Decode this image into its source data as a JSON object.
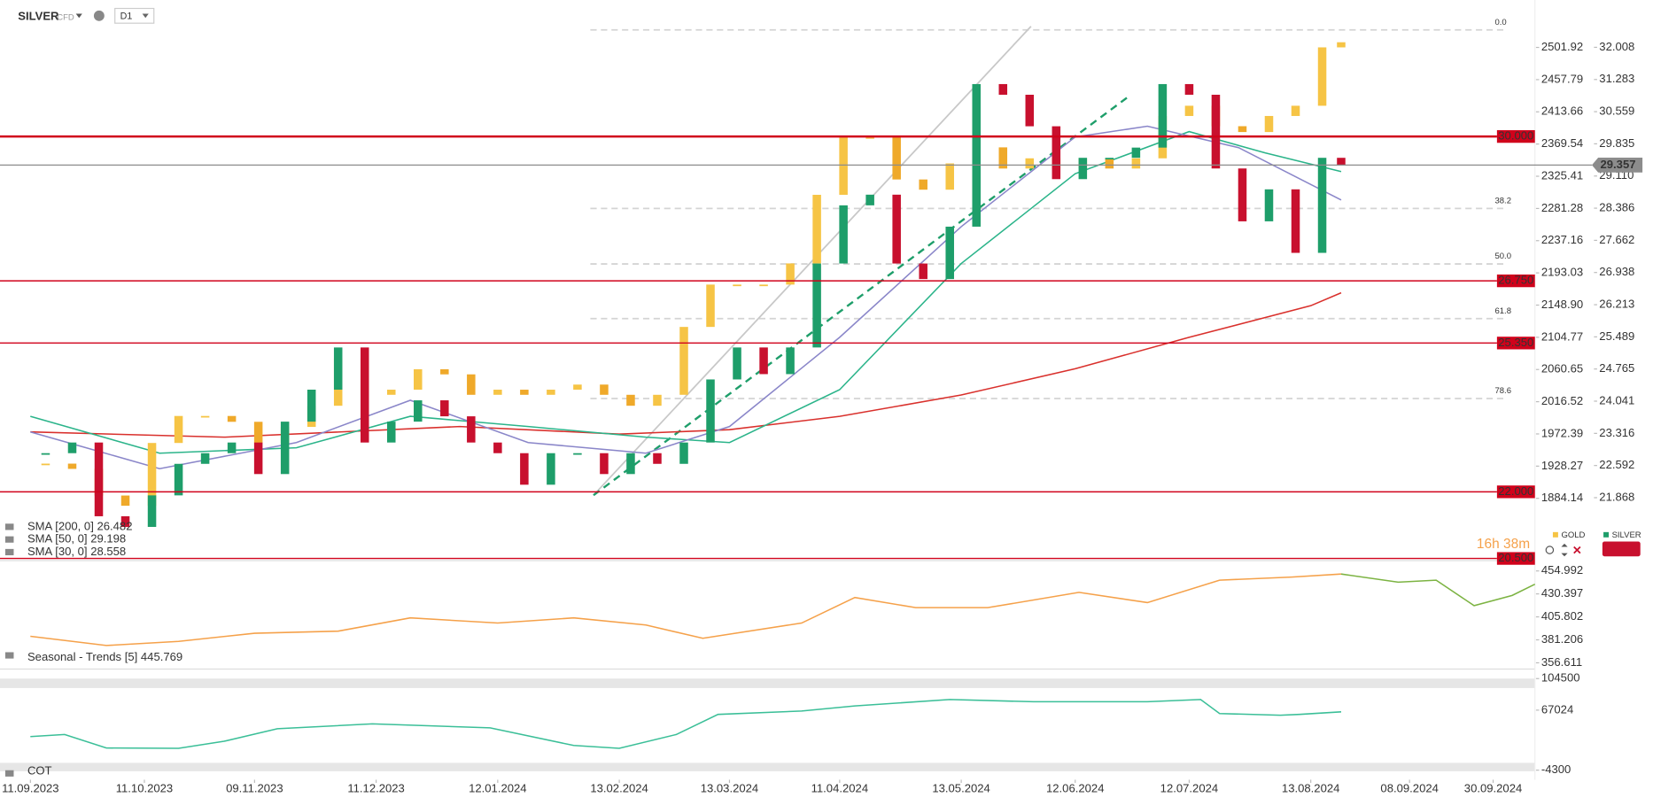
{
  "header": {
    "symbol": "SILVER",
    "instrument_type": "CFD",
    "timeframe": "D1",
    "countdown": "16h 38m"
  },
  "chart_data": [
    {
      "type": "candlestick",
      "xlim": [
        "03.09.2023",
        "11.10.2024"
      ],
      "xticks": [
        "11.09.2023",
        "11.10.2023",
        "09.11.2023",
        "11.12.2023",
        "12.01.2024",
        "13.02.2024",
        "13.03.2024",
        "11.04.2024",
        "13.05.2024",
        "12.06.2024",
        "12.07.2024",
        "13.08.2024",
        "08.09.2024",
        "30.09.2024"
      ],
      "x": [
        "15.09.2023",
        "22.09.2023",
        "29.09.2023",
        "06.10.2023",
        "13.10.2023",
        "20.10.2023",
        "27.10.2023",
        "03.11.2023",
        "10.11.2023",
        "17.11.2023",
        "24.11.2023",
        "01.12.2023",
        "08.12.2023",
        "15.12.2023",
        "22.12.2023",
        "29.12.2023",
        "05.01.2024",
        "12.01.2024",
        "19.01.2024",
        "26.01.2024",
        "02.02.2024",
        "09.02.2024",
        "16.02.2024",
        "23.02.2024",
        "01.03.2024",
        "08.03.2024",
        "15.03.2024",
        "22.03.2024",
        "29.03.2024",
        "05.04.2024",
        "12.04.2024",
        "19.04.2024",
        "26.04.2024",
        "03.05.2024",
        "10.05.2024",
        "17.05.2024",
        "24.05.2024",
        "31.05.2024",
        "07.06.2024",
        "14.06.2024",
        "21.06.2024",
        "28.06.2024",
        "05.07.2024",
        "12.07.2024",
        "19.07.2024",
        "26.07.2024",
        "02.08.2024",
        "09.08.2024",
        "16.08.2024",
        "21.08.2024"
      ],
      "series": [
        {
          "name": "GOLD",
          "color": "#f6c445",
          "down_color": "#efa92a",
          "axis": "y2",
          "values": [
            1931.7,
            1924.5,
            1888,
            1874,
            1960,
            1997,
            1997,
            1989,
            1960,
            1982,
            2011,
            2076,
            2026,
            2033,
            2061,
            2054,
            2026,
            2033,
            2026,
            2033,
            2040,
            2026,
            2011,
            2026,
            2119,
            2177,
            2177,
            2177,
            2206,
            2300,
            2379,
            2379,
            2321,
            2307,
            2343,
            2365,
            2336,
            2350,
            2336,
            2350,
            2336,
            2350,
            2408,
            2422,
            2394,
            2386,
            2408,
            2422,
            2502,
            2509
          ]
        },
        {
          "name": "SILVER",
          "color": "#1e9e6a",
          "down_color": "#c8102e",
          "axis": "y",
          "values": [
            22.87,
            23.11,
            21.45,
            21.21,
            21.92,
            22.63,
            22.87,
            23.11,
            22.4,
            23.58,
            24.3,
            25.25,
            23.11,
            23.58,
            24.06,
            23.7,
            23.11,
            22.87,
            22.16,
            22.87,
            22.87,
            22.4,
            22.87,
            22.63,
            23.11,
            24.53,
            25.25,
            24.65,
            25.25,
            27.14,
            28.45,
            28.69,
            27.14,
            26.79,
            27.97,
            31.18,
            30.94,
            30.23,
            29.04,
            29.52,
            29.52,
            29.75,
            31.18,
            30.94,
            29.28,
            28.09,
            28.81,
            27.38,
            29.52,
            29.36
          ]
        }
      ],
      "ylim": [
        20.5,
        32.48
      ],
      "yticks": [
        32.008,
        31.283,
        30.559,
        29.835,
        {
          "value": 29.11,
          "label": "29.110"
        },
        28.386,
        27.662,
        26.938,
        26.213,
        25.489,
        24.765,
        24.041,
        23.316,
        22.592,
        21.868
      ],
      "y2lim": [
        1801.8,
        2530.8
      ],
      "y2ticks": [
        2501.92,
        2457.79,
        2413.66,
        2369.54,
        2325.41,
        2281.28,
        2237.16,
        2193.03,
        {
          "value": 2148.9,
          "label": "2148.90"
        },
        2104.77,
        2060.65,
        2016.52,
        1972.39,
        1928.27,
        1884.14
      ],
      "levels": [
        {
          "value": 30,
          "label": "30.000"
        },
        {
          "value": 26.75,
          "label": "26.750"
        },
        {
          "value": 25.35,
          "label": "25.350"
        },
        {
          "value": 22,
          "label": "22.000"
        },
        {
          "value": 20.5,
          "label": "20.500"
        }
      ],
      "level_color": "#d0021b",
      "last_price": 29.357,
      "fibonacci": [
        {
          "label": "0.0",
          "value": 32.4
        },
        {
          "label": "38.2",
          "value": 28.38
        },
        {
          "label": "50.0",
          "value": 27.13
        },
        {
          "label": "61.8",
          "value": 25.9
        },
        {
          "label": "78.6",
          "value": 24.1
        }
      ],
      "indicators": [
        {
          "name": "SMA [200, 0] 26.482",
          "color": "#d9302c",
          "x": [
            "11.09.2023",
            "01.11.2023",
            "02.01.2024",
            "13.02.2024",
            "13.03.2024",
            "11.04.2024",
            "13.05.2024",
            "12.06.2024",
            "12.07.2024",
            "13.08.2024",
            "21.08.2024"
          ],
          "values": [
            23.35,
            23.23,
            23.47,
            23.3,
            23.4,
            23.7,
            24.18,
            24.77,
            25.48,
            26.19,
            26.48
          ]
        },
        {
          "name": "SMA [50, 0] 29.198",
          "color": "#2bb48a",
          "x": [
            "11.09.2023",
            "15.10.2023",
            "20.11.2023",
            "20.12.2023",
            "20.01.2024",
            "20.02.2024",
            "13.03.2024",
            "11.04.2024",
            "13.05.2024",
            "12.06.2024",
            "12.07.2024",
            "01.08.2024",
            "21.08.2024"
          ],
          "values": [
            23.7,
            22.87,
            22.99,
            23.7,
            23.47,
            23.23,
            23.11,
            24.3,
            27.14,
            29.16,
            30.11,
            29.63,
            29.21
          ]
        },
        {
          "name": "SMA [30, 0] 28.558",
          "color": "#8a86c9",
          "x": [
            "11.09.2023",
            "15.10.2023",
            "20.11.2023",
            "20.12.2023",
            "20.01.2024",
            "20.02.2024",
            "13.03.2024",
            "11.04.2024",
            "13.05.2024",
            "12.06.2024",
            "01.07.2024",
            "25.07.2024",
            "21.08.2024"
          ],
          "values": [
            23.35,
            22.52,
            23.11,
            24.06,
            23.11,
            22.87,
            23.47,
            25.48,
            27.97,
            29.99,
            30.23,
            29.75,
            28.57
          ]
        }
      ]
    },
    {
      "type": "line",
      "title": "Seasonal - Trends [5] 445.769",
      "ylim": [
        353.3,
        461.6
      ],
      "yticks": [
        454.992,
        430.397,
        405.802,
        381.206,
        356.611
      ],
      "series": [
        {
          "color": "#f5a14a",
          "x": [
            "11.09.2023",
            "01.10.2023",
            "20.10.2023",
            "09.11.2023",
            "01.12.2023",
            "20.12.2023",
            "12.01.2024",
            "01.02.2024",
            "20.02.2024",
            "06.03.2024",
            "01.04.2024",
            "15.04.2024",
            "01.05.2024",
            "20.05.2024",
            "13.06.2024",
            "01.07.2024",
            "20.07.2024",
            "08.08.2024",
            "21.08.2024"
          ],
          "values": [
            385.03,
            375.19,
            379.57,
            388.31,
            390.5,
            404.71,
            399.24,
            404.71,
            397.06,
            382.85,
            399.24,
            426.57,
            415.64,
            415.64,
            432.03,
            421.09,
            445.15,
            448.43,
            451.71
          ]
        },
        {
          "color": "#7cb342",
          "x": [
            "21.08.2024",
            "05.09.2024",
            "15.09.2024",
            "25.09.2024",
            "05.10.2024",
            "11.10.2024"
          ],
          "values": [
            451.71,
            442.97,
            445.15,
            417.83,
            428.76,
            440.78
          ]
        }
      ]
    },
    {
      "type": "line",
      "title": "COT",
      "ylim": [
        -15640,
        109540
      ],
      "yticks": [
        104500,
        67024,
        -4300
      ],
      "series": [
        {
          "color": "#3bbf98",
          "x": [
            "11.09.2023",
            "20.09.2023",
            "01.10.2023",
            "20.10.2023",
            "01.11.2023",
            "15.11.2023",
            "10.12.2023",
            "10.01.2024",
            "01.02.2024",
            "13.02.2024",
            "28.02.2024",
            "10.03.2024",
            "01.04.2024",
            "15.04.2024",
            "10.05.2024",
            "01.06.2024",
            "01.07.2024",
            "15.07.2024",
            "20.07.2024",
            "05.08.2024",
            "10.08.2024",
            "21.08.2024"
          ],
          "values": [
            35524,
            38000,
            22000,
            21664,
            30000,
            45000,
            50644,
            46000,
            25000,
            21664,
            38000,
            62000,
            66000,
            72000,
            79624,
            77000,
            77000,
            79624,
            63000,
            61000,
            62000,
            65000
          ]
        }
      ]
    }
  ]
}
